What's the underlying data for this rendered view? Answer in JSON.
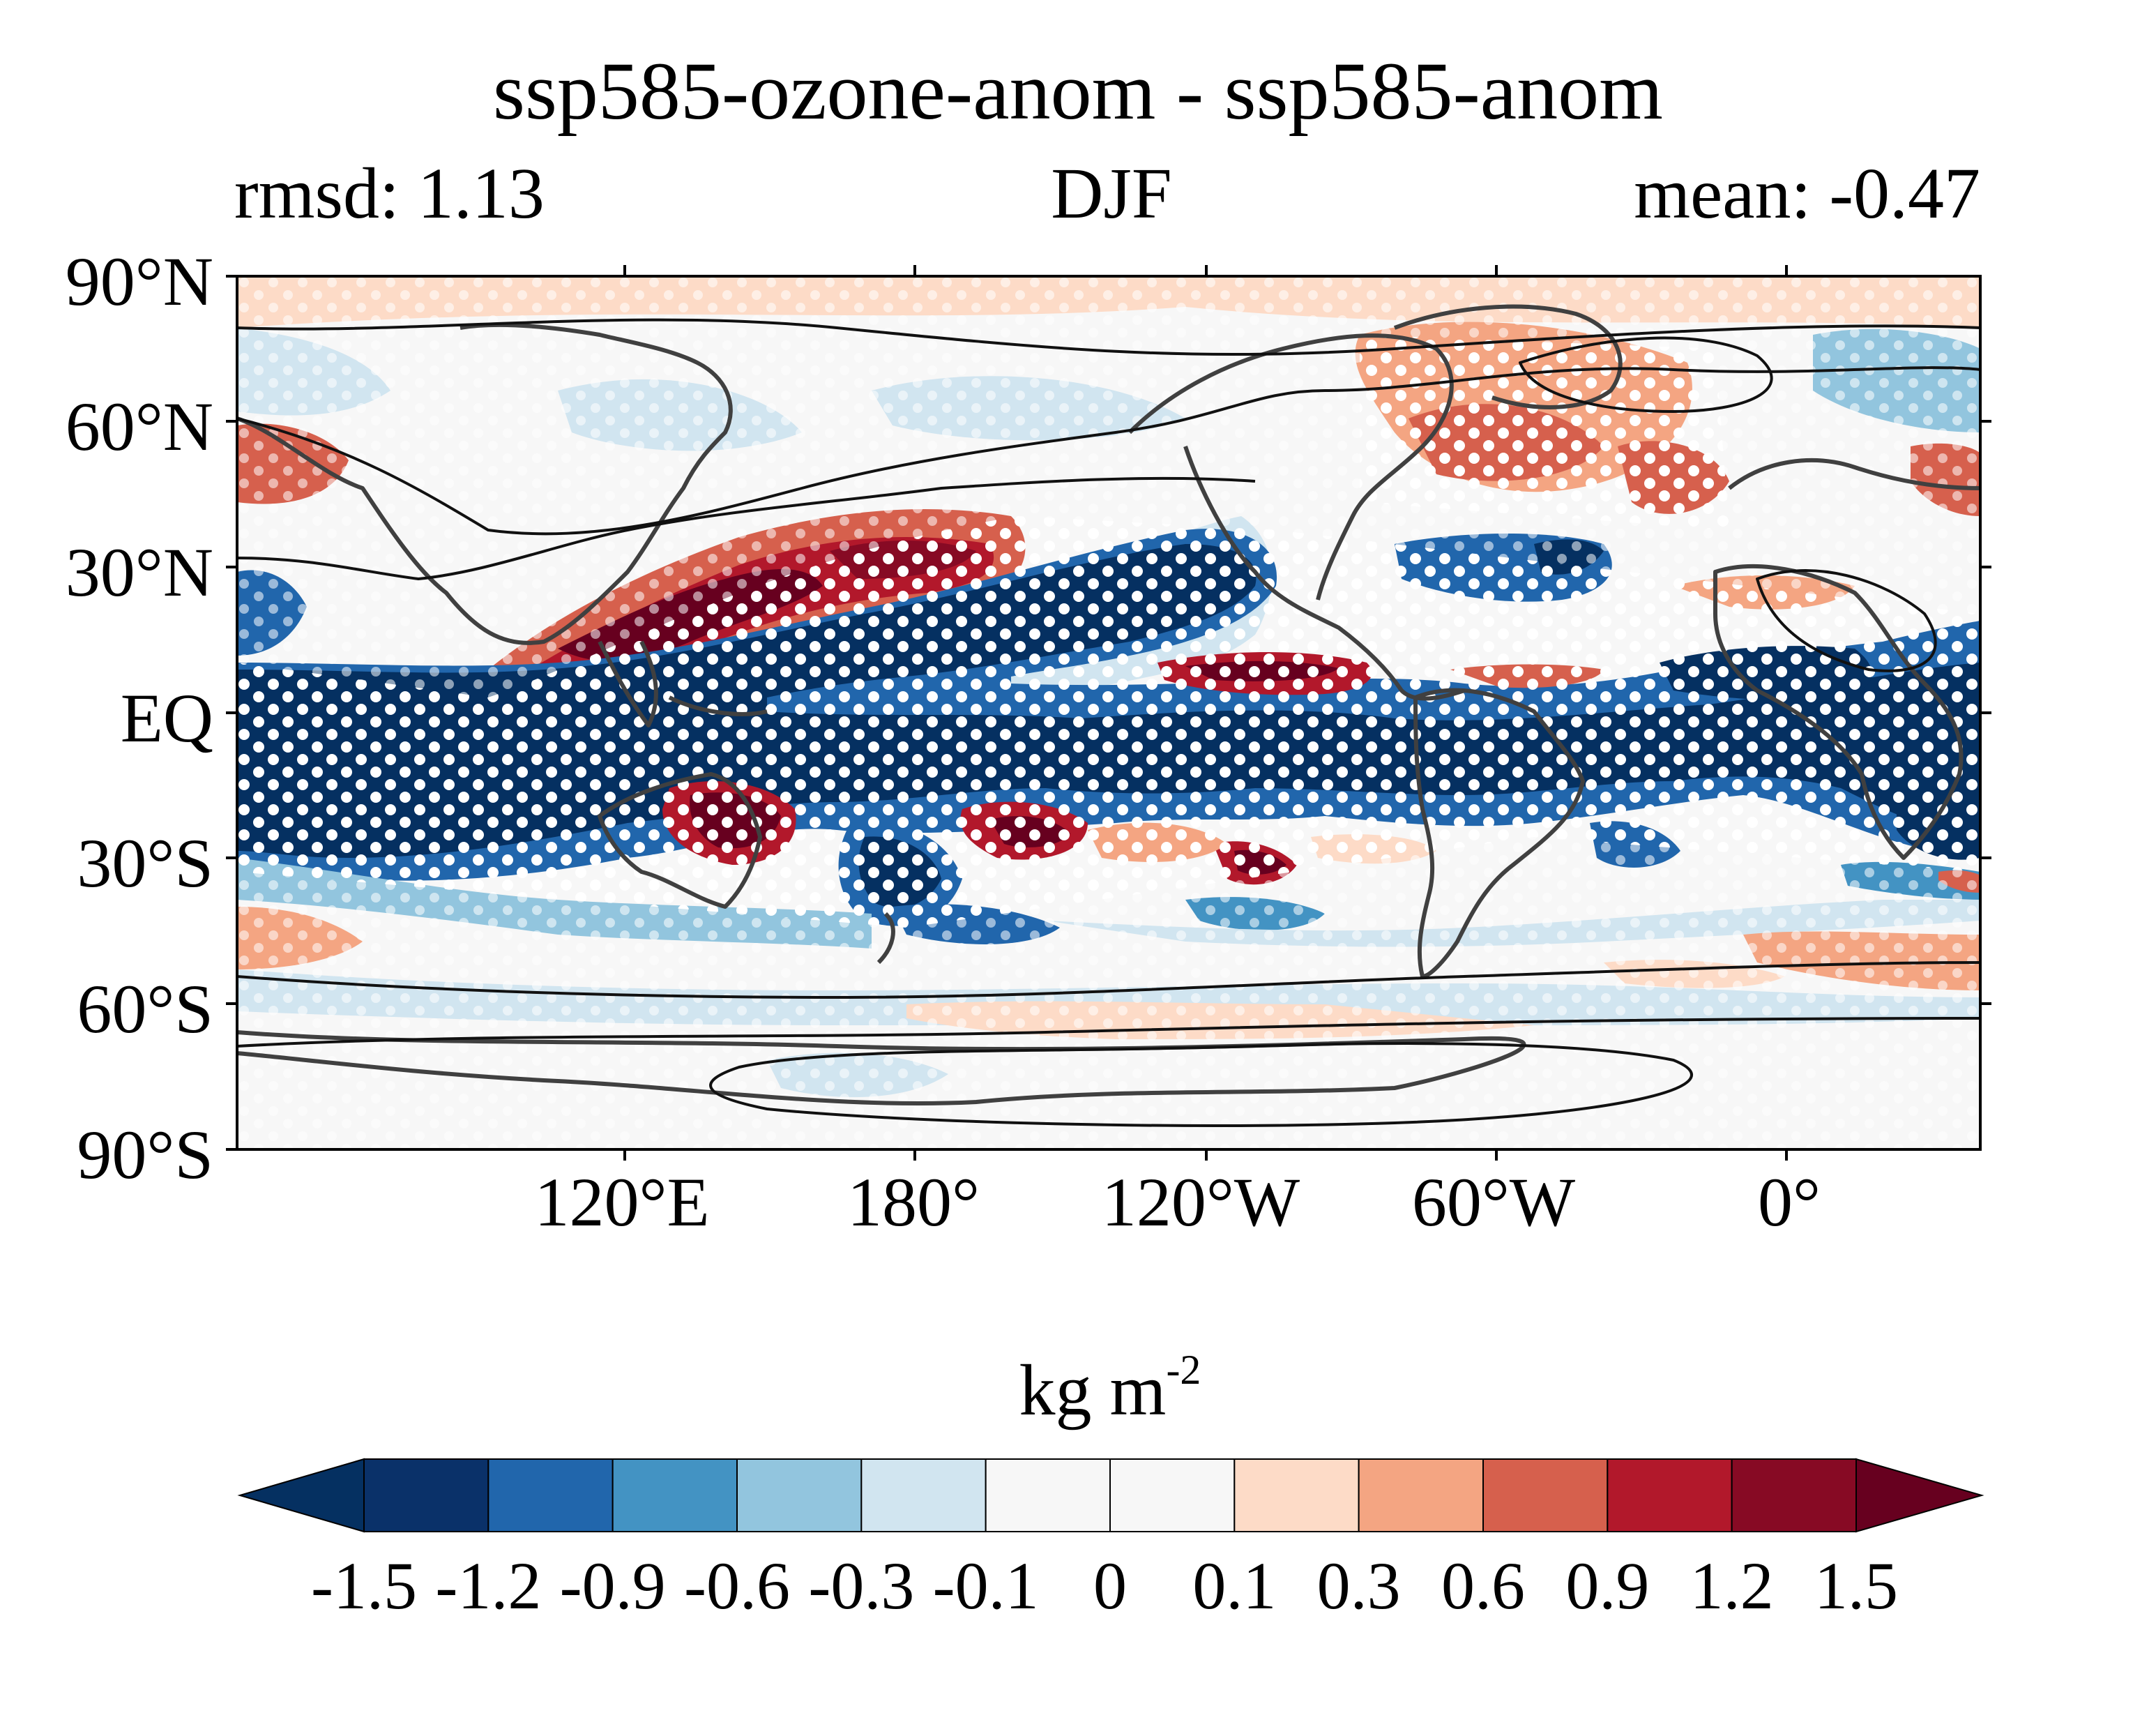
{
  "title": "ssp585-ozone-anom - ssp585-anom",
  "subtitle_left": "rmsd: 1.13",
  "subtitle_center": "DJF",
  "subtitle_right": "mean: -0.47",
  "map": {
    "projection": "PlateCarree",
    "lat_labels": [
      "90°N",
      "60°N",
      "30°N",
      "EQ",
      "30°S",
      "60°S",
      "90°S"
    ],
    "lon_labels": [
      "120°E",
      "180°",
      "120°W",
      "60°W",
      "0°"
    ],
    "stippling": "white dots mark significant regions",
    "contours": "black climatology contour lines",
    "coastlines": true
  },
  "colorbar": {
    "label": "kg m",
    "label_exponent": "-2",
    "extend": "both",
    "ticks": [
      "-1.5",
      "-1.2",
      "-0.9",
      "-0.6",
      "-0.3",
      "-0.1",
      "0",
      "0.1",
      "0.3",
      "0.6",
      "0.9",
      "1.2",
      "1.5"
    ],
    "colors": [
      "#053061",
      "#0a3169",
      "#2166ac",
      "#4393c3",
      "#92c5de",
      "#d1e5f0",
      "#f7f7f7",
      "#f7f7f7",
      "#fddbc7",
      "#f4a582",
      "#d6604d",
      "#b2182b",
      "#870a24",
      "#67001f"
    ]
  }
}
